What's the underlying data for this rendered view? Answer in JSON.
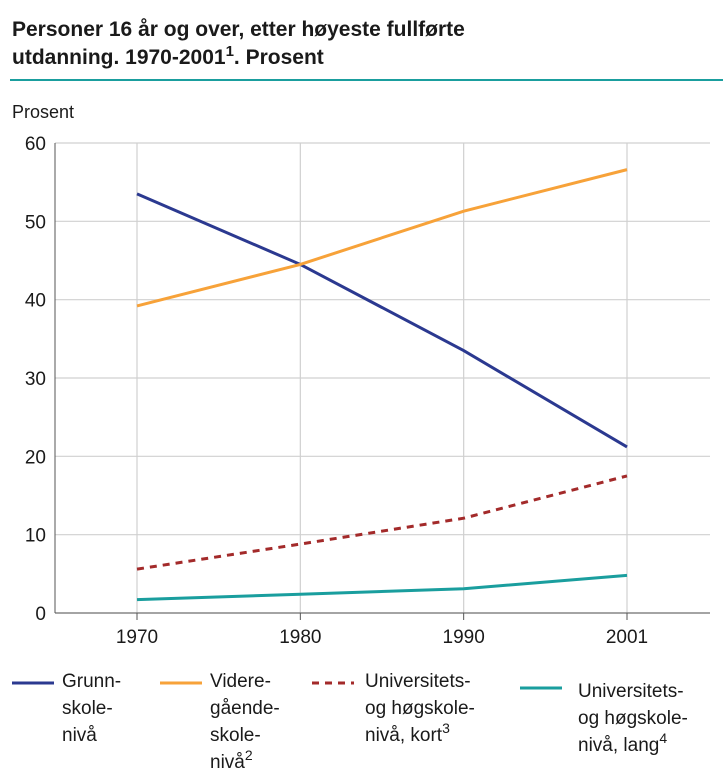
{
  "chart_data": {
    "type": "line",
    "title_lines": [
      "Personer 16 år og over, etter høyeste fullførte",
      "utdanning. 1970-2001"
    ],
    "title_sup": "1",
    "title_end": ". Prosent",
    "y_label": "Prosent",
    "categories": [
      "1970",
      "1980",
      "1990",
      "2001"
    ],
    "ylim": [
      0,
      60
    ],
    "yticks": [
      0,
      10,
      20,
      30,
      40,
      50,
      60
    ],
    "grid": true,
    "series": [
      {
        "name_lines": [
          "Grunn-",
          "skole-",
          "nivå"
        ],
        "color": "#2b3990",
        "dashed": false,
        "values": [
          53.5,
          44.5,
          33.5,
          21.2
        ]
      },
      {
        "name_lines": [
          "Videre-",
          "gående-",
          "skole-",
          "nivå"
        ],
        "footnote": "2",
        "color": "#f7a239",
        "dashed": false,
        "values": [
          39.2,
          44.5,
          51.3,
          56.6
        ]
      },
      {
        "name_lines": [
          "Universitets-",
          "og høgskole-",
          "nivå, kort"
        ],
        "footnote": "3",
        "color": "#a32a2a",
        "dashed": true,
        "values": [
          5.6,
          8.8,
          12.1,
          17.5
        ]
      },
      {
        "name_lines": [
          "Universitets-",
          "og høgskole-",
          "nivå, lang"
        ],
        "footnote": "4",
        "color": "#1a9e9e",
        "dashed": false,
        "values": [
          1.7,
          2.4,
          3.1,
          4.8
        ]
      }
    ]
  }
}
